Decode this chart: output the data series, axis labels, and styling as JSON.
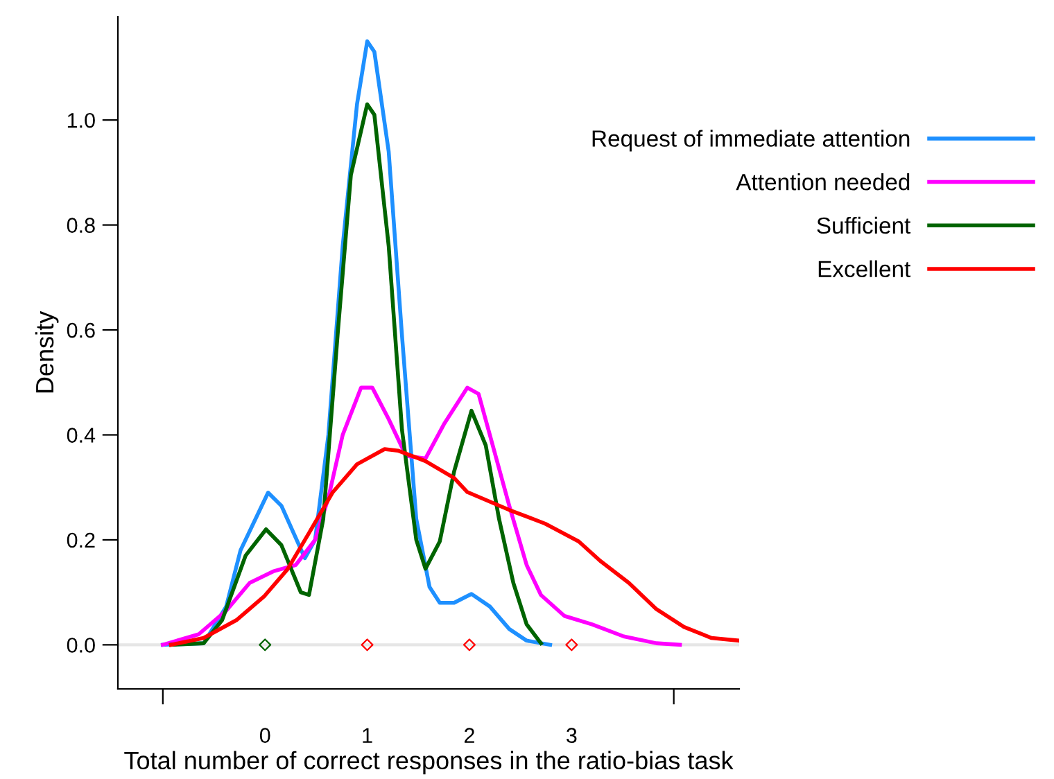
{
  "chart_data": {
    "type": "line",
    "xlabel": "Total number of correct responses in the ratio-bias task",
    "ylabel": "Density",
    "xlim": [
      -1.44,
      4.64
    ],
    "ylim": [
      -0.084,
      1.197
    ],
    "xticks": [
      {
        "value": -1,
        "label": null
      },
      0,
      1,
      2,
      3,
      {
        "value": 4,
        "label": null
      }
    ],
    "yticks": [
      {
        "value": 0,
        "label": "0.0"
      },
      {
        "value": 0.2,
        "label": "0.2"
      },
      {
        "value": 0.4,
        "label": "0.4"
      },
      {
        "value": 0.6,
        "label": "0.6"
      },
      {
        "value": 0.8,
        "label": "0.8"
      },
      {
        "value": 1,
        "label": "1.0"
      }
    ],
    "grid": false,
    "legend": "top right",
    "marker": "none",
    "line_style": "solid",
    "ref_lines": [
      {
        "axis": "y",
        "value": 0,
        "color": "#e6e6e6"
      }
    ],
    "series": [
      {
        "name": "Request of immediate attention",
        "color": "#1e90ff",
        "x": [
          -1.0,
          -0.6,
          -0.38,
          -0.24,
          0.03,
          0.16,
          0.39,
          0.49,
          0.62,
          0.76,
          0.9,
          1.0,
          1.07,
          1.21,
          1.34,
          1.48,
          1.61,
          1.71,
          1.85,
          2.02,
          2.2,
          2.39,
          2.56,
          2.79
        ],
        "values": [
          0,
          0.003,
          0.073,
          0.18,
          0.29,
          0.265,
          0.165,
          0.2,
          0.4,
          0.76,
          1.03,
          1.15,
          1.13,
          0.94,
          0.59,
          0.24,
          0.11,
          0.08,
          0.08,
          0.097,
          0.073,
          0.03,
          0.008,
          0
        ]
      },
      {
        "name": "Attention needed",
        "color": "#ff00ff",
        "x": [
          -1.0,
          -0.65,
          -0.38,
          -0.15,
          0.08,
          0.3,
          0.49,
          0.62,
          0.76,
          0.94,
          1.05,
          1.21,
          1.38,
          1.57,
          1.75,
          1.98,
          2.09,
          2.2,
          2.39,
          2.56,
          2.7,
          2.93,
          3.2,
          3.51,
          3.83,
          4.06
        ],
        "values": [
          0,
          0.02,
          0.065,
          0.118,
          0.14,
          0.152,
          0.2,
          0.28,
          0.4,
          0.49,
          0.49,
          0.43,
          0.36,
          0.355,
          0.42,
          0.49,
          0.478,
          0.4,
          0.265,
          0.152,
          0.095,
          0.055,
          0.039,
          0.016,
          0.003,
          0
        ]
      },
      {
        "name": "Sufficient",
        "color": "#006400",
        "x": [
          -0.92,
          -0.6,
          -0.42,
          -0.19,
          0.01,
          0.16,
          0.35,
          0.43,
          0.57,
          0.71,
          0.84,
          1.0,
          1.07,
          1.21,
          1.34,
          1.48,
          1.57,
          1.71,
          1.85,
          2.02,
          2.16,
          2.29,
          2.43,
          2.56,
          2.7
        ],
        "values": [
          0,
          0.003,
          0.047,
          0.17,
          0.22,
          0.19,
          0.1,
          0.095,
          0.24,
          0.59,
          0.895,
          1.03,
          1.01,
          0.76,
          0.41,
          0.2,
          0.145,
          0.197,
          0.33,
          0.446,
          0.38,
          0.24,
          0.118,
          0.039,
          0.003
        ]
      },
      {
        "name": "Excellent",
        "color": "#ff0000",
        "x": [
          -0.92,
          -0.6,
          -0.28,
          -0.01,
          0.22,
          0.43,
          0.66,
          0.9,
          1.17,
          1.3,
          1.48,
          1.57,
          1.85,
          1.98,
          2.39,
          2.74,
          3.07,
          3.28,
          3.56,
          3.83,
          4.1,
          4.37,
          4.64
        ],
        "values": [
          0,
          0.013,
          0.047,
          0.092,
          0.144,
          0.213,
          0.29,
          0.344,
          0.373,
          0.37,
          0.357,
          0.35,
          0.318,
          0.291,
          0.257,
          0.231,
          0.197,
          0.16,
          0.118,
          0.068,
          0.034,
          0.013,
          0.008
        ]
      },
      {
        "type": "scatter",
        "marker": "diamond",
        "x": [
          0,
          1,
          2,
          3
        ],
        "values": [
          0,
          0,
          0,
          0
        ],
        "colors": [
          "#006400",
          "#ff0000",
          "#ff0000",
          "#ff0000"
        ]
      }
    ]
  }
}
